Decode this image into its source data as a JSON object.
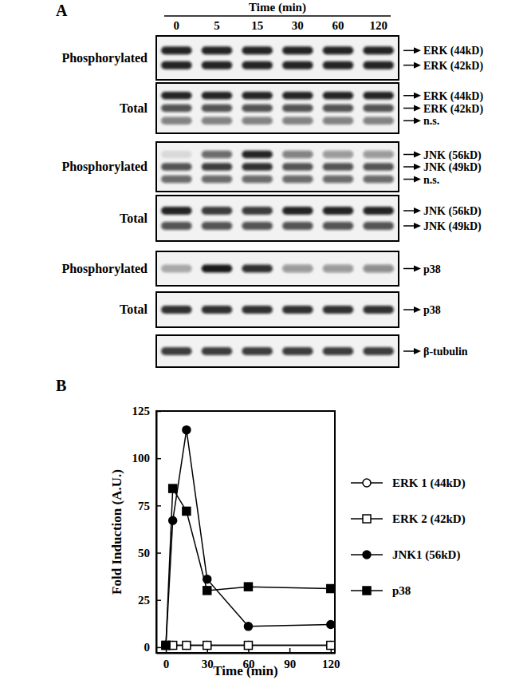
{
  "panel_a": {
    "panel_label": "A",
    "title": "Time (min)",
    "lanes": [
      0,
      5,
      15,
      30,
      60,
      120
    ],
    "blots": [
      {
        "row_label": "Phosphorylated",
        "bands": [
          {
            "label": "ERK (44kD)",
            "intensity": [
              0.9,
              0.9,
              0.9,
              0.9,
              0.9,
              0.9
            ]
          },
          {
            "label": "ERK (42kD)",
            "intensity": [
              0.9,
              0.9,
              0.9,
              0.9,
              0.9,
              0.9
            ]
          }
        ]
      },
      {
        "row_label": "Total",
        "bands": [
          {
            "label": "ERK (44kD)",
            "intensity": [
              0.9,
              0.9,
              0.9,
              0.9,
              0.9,
              0.9
            ]
          },
          {
            "label": "ERK (42kD)",
            "intensity": [
              0.7,
              0.7,
              0.7,
              0.7,
              0.7,
              0.7
            ]
          },
          {
            "label": "n.s.",
            "intensity": [
              0.5,
              0.5,
              0.5,
              0.5,
              0.5,
              0.5
            ]
          }
        ]
      },
      {
        "row_label": "Phosphorylated",
        "bands": [
          {
            "label": "JNK (56kD)",
            "intensity": [
              0.1,
              0.6,
              0.9,
              0.5,
              0.4,
              0.4
            ]
          },
          {
            "label": "JNK (49kD)",
            "intensity": [
              0.7,
              0.8,
              0.85,
              0.7,
              0.7,
              0.7
            ]
          },
          {
            "label": "n.s.",
            "intensity": [
              0.6,
              0.6,
              0.6,
              0.6,
              0.6,
              0.6
            ]
          }
        ]
      },
      {
        "row_label": "Total",
        "bands": [
          {
            "label": "JNK (56kD)",
            "intensity": [
              0.9,
              0.8,
              0.8,
              0.9,
              0.9,
              0.9
            ]
          },
          {
            "label": "JNK (49kD)",
            "intensity": [
              0.7,
              0.7,
              0.7,
              0.7,
              0.7,
              0.7
            ]
          }
        ]
      },
      {
        "row_label": "Phosphorylated",
        "bands": [
          {
            "label": "p38",
            "intensity": [
              0.3,
              0.95,
              0.85,
              0.4,
              0.4,
              0.45
            ]
          }
        ]
      },
      {
        "row_label": "Total",
        "bands": [
          {
            "label": "p38",
            "intensity": [
              0.85,
              0.85,
              0.85,
              0.85,
              0.85,
              0.85
            ]
          }
        ]
      },
      {
        "bands": [
          {
            "label": "β-tubulin",
            "intensity": [
              0.8,
              0.8,
              0.8,
              0.8,
              0.8,
              0.8
            ]
          }
        ]
      }
    ]
  },
  "chart_data": {
    "type": "line",
    "annotations": [
      "B"
    ],
    "x_label": "Time (min)",
    "y_label": "Fold Induction (A.U.)",
    "x": [
      0,
      5,
      15,
      30,
      60,
      120
    ],
    "xlim": [
      -7,
      123
    ],
    "xticks": [
      0,
      30,
      60,
      90,
      120
    ],
    "ylim": [
      -3,
      125
    ],
    "yticks": [
      0,
      25,
      50,
      75,
      100,
      125
    ],
    "grid": false,
    "legend": "right",
    "series": [
      {
        "name": "ERK 1 (44kD)",
        "color": "#000000",
        "marker": "circle-open",
        "values": [
          1,
          1,
          1,
          1,
          1,
          1
        ]
      },
      {
        "name": "ERK 2 (42kD)",
        "color": "#000000",
        "marker": "square-open",
        "values": [
          1,
          1,
          1,
          1,
          1,
          1
        ]
      },
      {
        "name": "JNK1 (56kD)",
        "color": "#000000",
        "marker": "circle",
        "values": [
          1,
          67,
          115,
          36,
          11,
          12
        ]
      },
      {
        "name": "p38",
        "color": "#000000",
        "marker": "square",
        "values": [
          1,
          84,
          72,
          30,
          32,
          31
        ]
      }
    ]
  }
}
